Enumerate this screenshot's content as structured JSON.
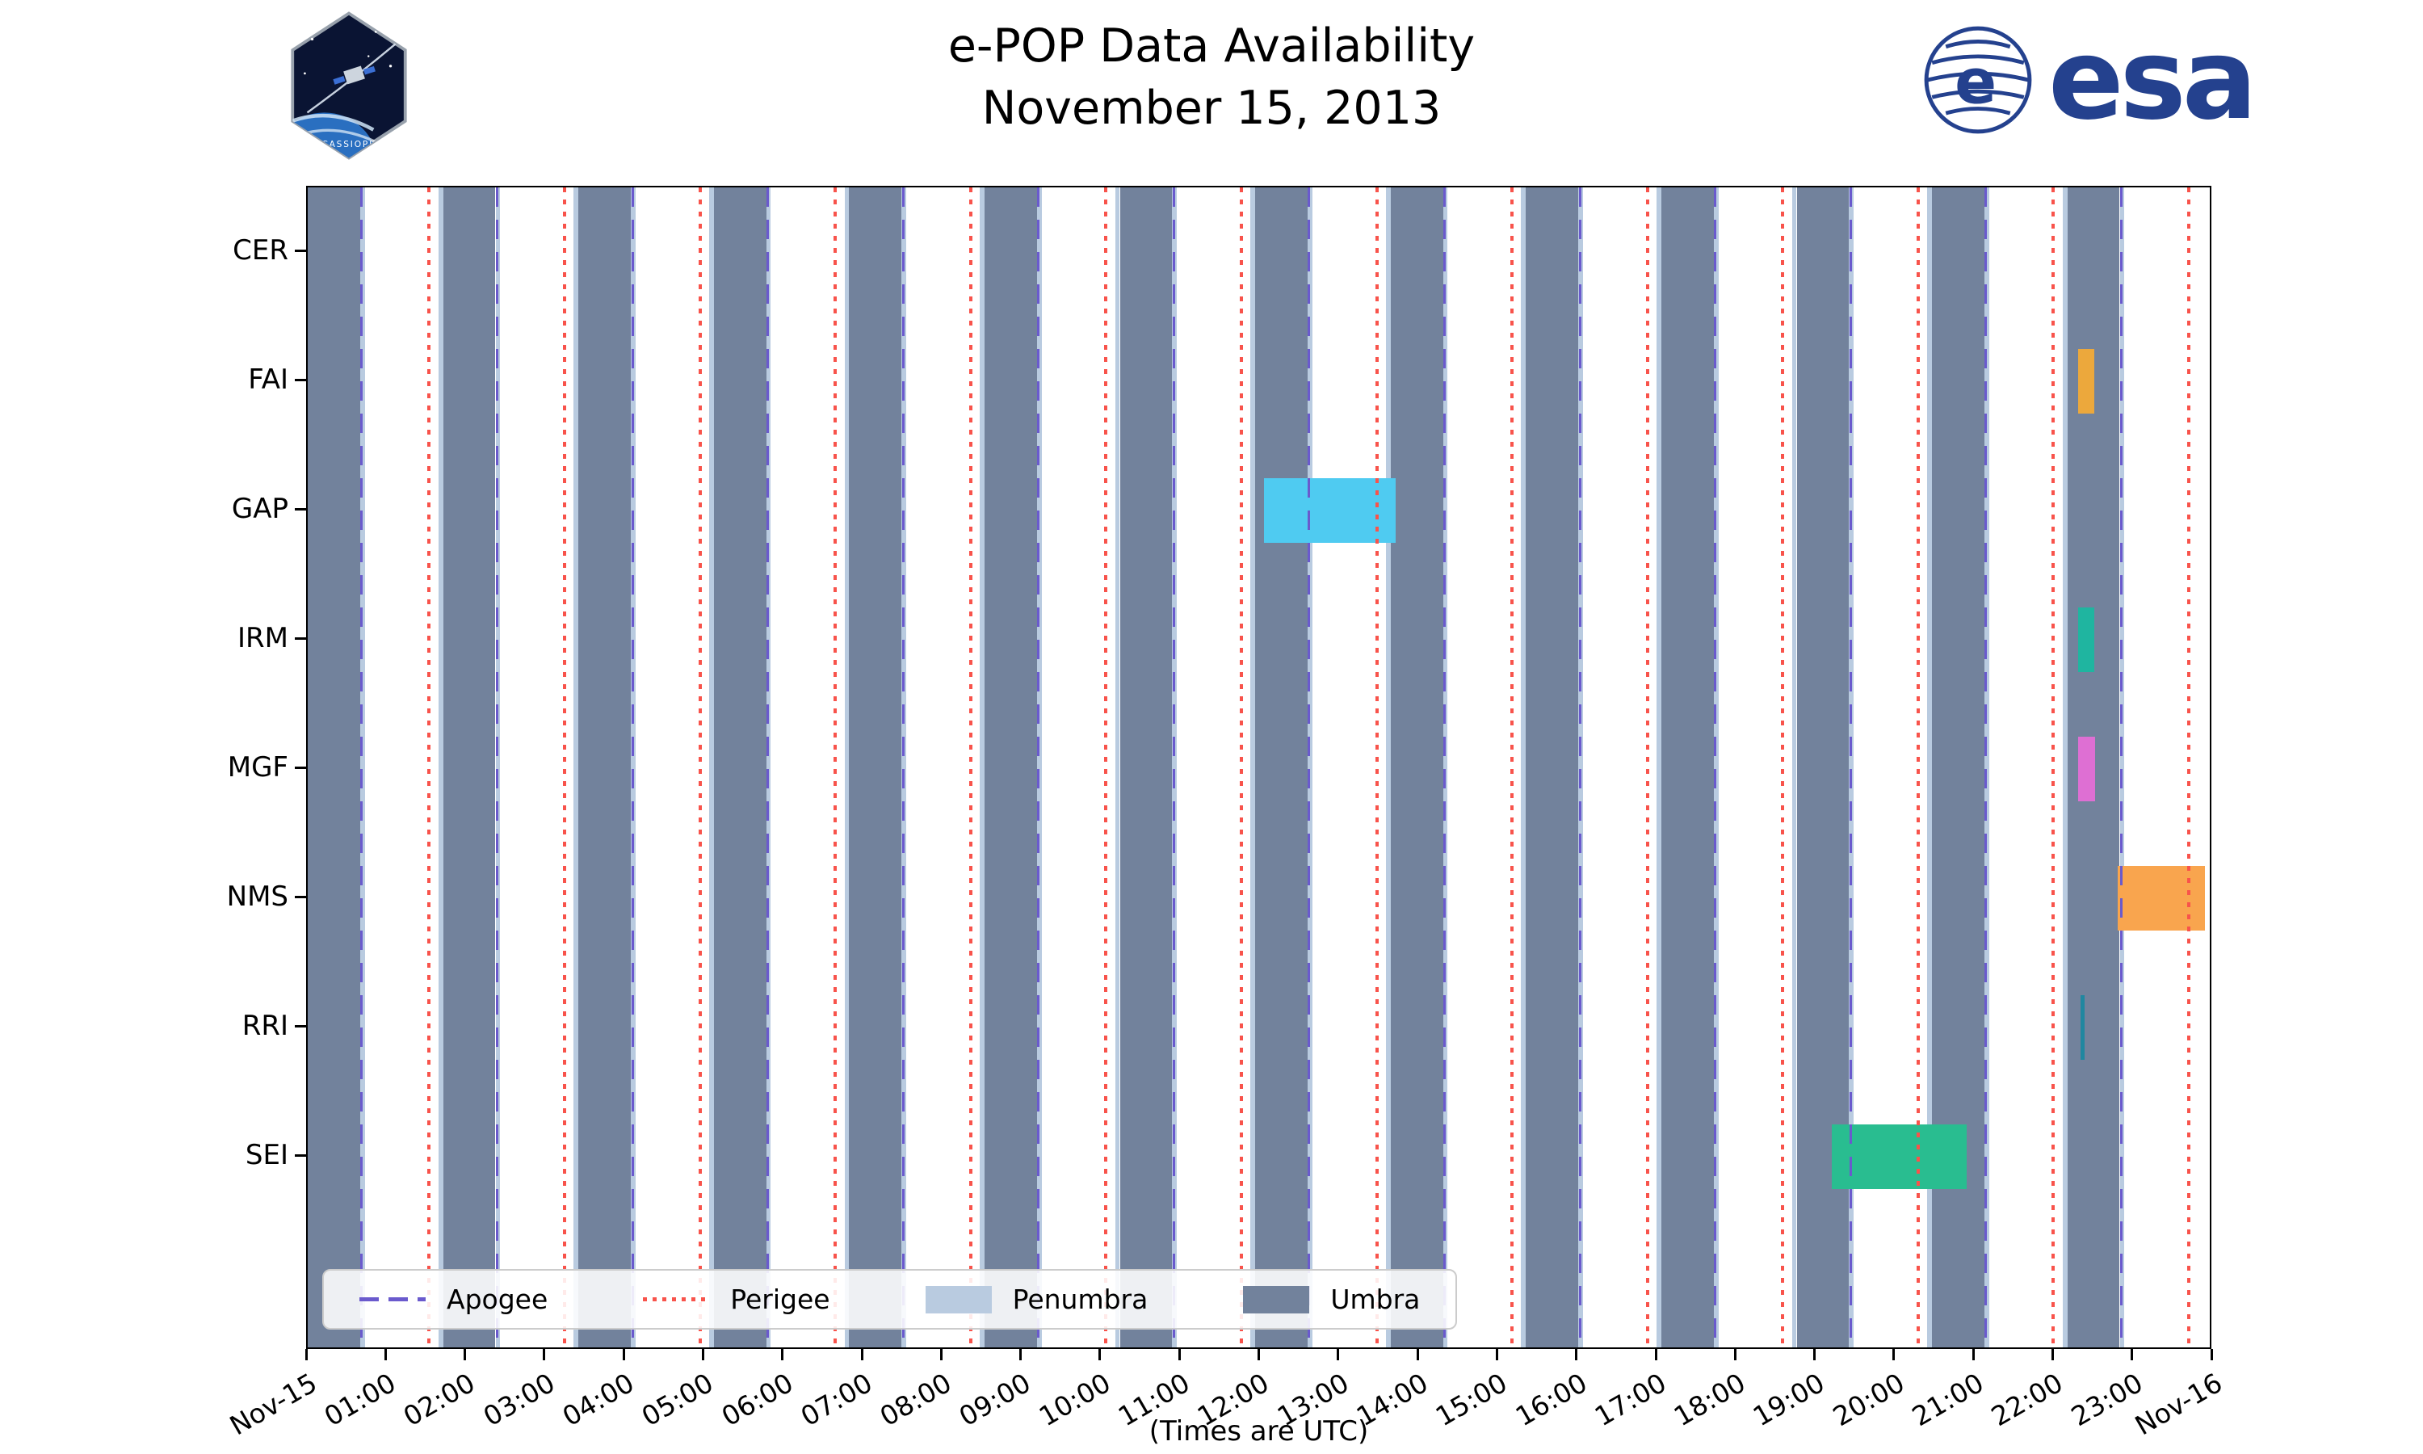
{
  "header": {
    "patch_title": "CASSIOPE",
    "esa_wordmark": "esa",
    "esa_blue": "#24418E"
  },
  "chart_data": {
    "type": "bar",
    "subtype": "gantt-timeline",
    "title": "e-POP Data Availability",
    "subtitle": "November 15, 2013",
    "xlabel": "(Times are UTC)",
    "x_range_hours": [
      0,
      24
    ],
    "grid": false,
    "legend_position": "lower-left-inside",
    "x_ticks": [
      {
        "hour": 0,
        "label": "Nov-15"
      },
      {
        "hour": 1,
        "label": "01:00"
      },
      {
        "hour": 2,
        "label": "02:00"
      },
      {
        "hour": 3,
        "label": "03:00"
      },
      {
        "hour": 4,
        "label": "04:00"
      },
      {
        "hour": 5,
        "label": "05:00"
      },
      {
        "hour": 6,
        "label": "06:00"
      },
      {
        "hour": 7,
        "label": "07:00"
      },
      {
        "hour": 8,
        "label": "08:00"
      },
      {
        "hour": 9,
        "label": "09:00"
      },
      {
        "hour": 10,
        "label": "10:00"
      },
      {
        "hour": 11,
        "label": "11:00"
      },
      {
        "hour": 12,
        "label": "12:00"
      },
      {
        "hour": 13,
        "label": "13:00"
      },
      {
        "hour": 14,
        "label": "14:00"
      },
      {
        "hour": 15,
        "label": "15:00"
      },
      {
        "hour": 16,
        "label": "16:00"
      },
      {
        "hour": 17,
        "label": "17:00"
      },
      {
        "hour": 18,
        "label": "18:00"
      },
      {
        "hour": 19,
        "label": "19:00"
      },
      {
        "hour": 20,
        "label": "20:00"
      },
      {
        "hour": 21,
        "label": "21:00"
      },
      {
        "hour": 22,
        "label": "22:00"
      },
      {
        "hour": 23,
        "label": "23:00"
      },
      {
        "hour": 24,
        "label": "Nov-16"
      }
    ],
    "instruments": [
      "CER",
      "FAI",
      "GAP",
      "IRM",
      "MGF",
      "NMS",
      "RRI",
      "SEI"
    ],
    "bars": [
      {
        "instrument": "FAI",
        "start_hour": 22.3,
        "end_hour": 22.5,
        "color": "#ECA83C"
      },
      {
        "instrument": "GAP",
        "start_hour": 12.05,
        "end_hour": 13.7,
        "color": "#4FCBF1"
      },
      {
        "instrument": "IRM",
        "start_hour": 22.3,
        "end_hour": 22.5,
        "color": "#1FB5A0"
      },
      {
        "instrument": "MGF",
        "start_hour": 22.3,
        "end_hour": 22.52,
        "color": "#DE6FD3"
      },
      {
        "instrument": "NMS",
        "start_hour": 22.8,
        "end_hour": 23.9,
        "color": "#F9A54E"
      },
      {
        "instrument": "RRI",
        "start_hour": 22.33,
        "end_hour": 22.38,
        "color": "#2087A0"
      },
      {
        "instrument": "SEI",
        "start_hour": 19.2,
        "end_hour": 20.9,
        "color": "#29BD90"
      }
    ],
    "orbital_events": {
      "umbra": {
        "color": "#72829C",
        "duration_hours": 0.66,
        "starts_hours": [
          0,
          1.705,
          3.41,
          5.115,
          6.82,
          8.525,
          10.23,
          11.935,
          13.64,
          15.345,
          17.05,
          18.755,
          20.46,
          22.165
        ]
      },
      "penumbra": {
        "color": "#B9CBE0",
        "edge_width_hours": 0.06
      },
      "apogee": {
        "color": "#6A5ACD",
        "hours": [
          0.68,
          2.385,
          4.09,
          5.795,
          7.5,
          9.205,
          10.91,
          12.615,
          14.32,
          16.025,
          17.73,
          19.435,
          21.14,
          22.845
        ]
      },
      "perigee": {
        "color": "#F8534B",
        "hours": [
          1.53,
          3.235,
          4.94,
          6.645,
          8.35,
          10.055,
          11.76,
          13.465,
          15.17,
          16.875,
          18.58,
          20.285,
          21.99,
          23.695
        ]
      }
    },
    "legend": [
      {
        "label": "Apogee",
        "style": "dashed-line",
        "color": "#6A5ACD"
      },
      {
        "label": "Perigee",
        "style": "dotted-line",
        "color": "#F8534B"
      },
      {
        "label": "Penumbra",
        "style": "patch",
        "color": "#B9CBE0"
      },
      {
        "label": "Umbra",
        "style": "patch",
        "color": "#72829C"
      }
    ]
  }
}
